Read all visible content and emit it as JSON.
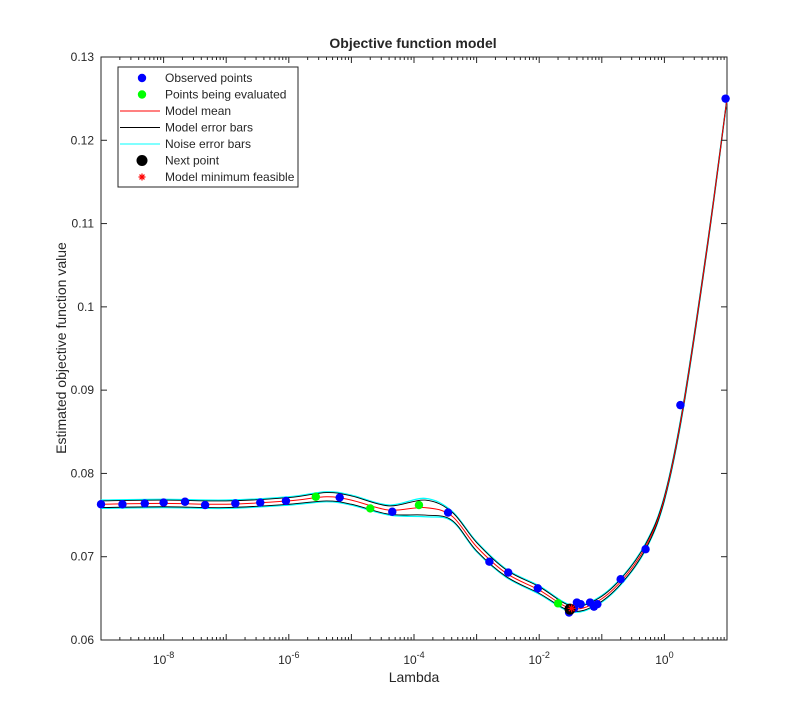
{
  "chart_data": {
    "type": "scatter",
    "title": "Objective function model",
    "xlabel": "Lambda",
    "ylabel": "Estimated objective function value",
    "x_scale": "log",
    "xlim": [
      1e-09,
      10
    ],
    "ylim": [
      0.06,
      0.13
    ],
    "x_ticks": [
      {
        "value": 1e-08,
        "base": "10",
        "exp": "-8"
      },
      {
        "value": 1e-06,
        "base": "10",
        "exp": "-6"
      },
      {
        "value": 0.0001,
        "base": "10",
        "exp": "-4"
      },
      {
        "value": 0.01,
        "base": "10",
        "exp": "-2"
      },
      {
        "value": 1,
        "base": "10",
        "exp": "0"
      }
    ],
    "y_ticks": [
      "0.06",
      "0.07",
      "0.08",
      "0.09",
      "0.1",
      "0.11",
      "0.12",
      "0.13"
    ],
    "grid": false,
    "legend_position": "top-left",
    "legend": [
      {
        "label": "Observed points",
        "kind": "marker",
        "color": "#0000ff"
      },
      {
        "label": "Points being evaluated",
        "kind": "marker",
        "color": "#00ff00"
      },
      {
        "label": "Model mean",
        "kind": "line",
        "color": "#ff0000"
      },
      {
        "label": "Model error bars",
        "kind": "line",
        "color": "#000000"
      },
      {
        "label": "Noise error bars",
        "kind": "line",
        "color": "#00ffff"
      },
      {
        "label": "Next point",
        "kind": "bigmarker",
        "color": "#000000"
      },
      {
        "label": "Model minimum feasible",
        "kind": "star",
        "color": "#ff0000"
      }
    ],
    "series": [
      {
        "name": "Observed points",
        "color": "#0000ff",
        "points": [
          [
            1e-09,
            0.0763
          ],
          [
            2.2e-09,
            0.0763
          ],
          [
            5e-09,
            0.0764
          ],
          [
            1e-08,
            0.0765
          ],
          [
            2.2e-08,
            0.0766
          ],
          [
            4.6e-08,
            0.0762
          ],
          [
            1.4e-07,
            0.0764
          ],
          [
            3.5e-07,
            0.0765
          ],
          [
            9e-07,
            0.0767
          ],
          [
            6.5e-06,
            0.0771
          ],
          [
            4.5e-05,
            0.0754
          ],
          [
            0.00035,
            0.0753
          ],
          [
            0.0016,
            0.0694
          ],
          [
            0.0032,
            0.0681
          ],
          [
            0.0095,
            0.0662
          ],
          [
            0.03,
            0.0633
          ],
          [
            0.036,
            0.0638
          ],
          [
            0.04,
            0.0645
          ],
          [
            0.046,
            0.0643
          ],
          [
            0.065,
            0.0645
          ],
          [
            0.075,
            0.064
          ],
          [
            0.085,
            0.0643
          ],
          [
            0.2,
            0.0673
          ],
          [
            0.5,
            0.0709
          ],
          [
            1.8,
            0.0882
          ],
          [
            9.5,
            0.125
          ]
        ]
      },
      {
        "name": "Points being evaluated",
        "color": "#00ff00",
        "points": [
          [
            2.7e-06,
            0.0772
          ],
          [
            2e-05,
            0.0758
          ],
          [
            0.00012,
            0.0762
          ],
          [
            0.02,
            0.0644
          ]
        ]
      },
      {
        "name": "Model mean",
        "color": "#ff0000",
        "points": [
          [
            1e-09,
            0.0763
          ],
          [
            1e-08,
            0.0764
          ],
          [
            1e-07,
            0.0763
          ],
          [
            1e-06,
            0.0767
          ],
          [
            4e-06,
            0.0772
          ],
          [
            1e-05,
            0.0768
          ],
          [
            4e-05,
            0.0756
          ],
          [
            0.00015,
            0.0759
          ],
          [
            0.0004,
            0.0749
          ],
          [
            0.001,
            0.0712
          ],
          [
            0.003,
            0.068
          ],
          [
            0.01,
            0.066
          ],
          [
            0.032,
            0.0638
          ],
          [
            0.08,
            0.0645
          ],
          [
            0.2,
            0.067
          ],
          [
            0.5,
            0.0712
          ],
          [
            1,
            0.077
          ],
          [
            2,
            0.088
          ],
          [
            5,
            0.108
          ],
          [
            10,
            0.125
          ]
        ]
      },
      {
        "name": "Model error bars",
        "color": "#000000",
        "offsets": [
          0.0004,
          0.0004,
          0.0004,
          0.0004,
          0.0005,
          0.0005,
          0.0005,
          0.0009,
          0.0005,
          0.0005,
          0.0004,
          0.0004,
          0.0003,
          0.0003,
          0.0003,
          0.0003,
          0.0002,
          0.0002,
          0.0002,
          0.0001
        ]
      },
      {
        "name": "Noise error bars",
        "color": "#00ffff",
        "offsets": [
          0.0005,
          0.0005,
          0.0005,
          0.0005,
          0.0006,
          0.0006,
          0.0006,
          0.0011,
          0.0006,
          0.0006,
          0.0005,
          0.0005,
          0.0004,
          0.0004,
          0.0004,
          0.0004,
          0.0003,
          0.0003,
          0.0002,
          0.0001
        ]
      },
      {
        "name": "Next point",
        "color": "#000000",
        "points": [
          [
            0.031,
            0.0637
          ]
        ]
      },
      {
        "name": "Model minimum feasible",
        "color": "#ff0000",
        "points": [
          [
            0.033,
            0.0638
          ]
        ]
      }
    ]
  }
}
